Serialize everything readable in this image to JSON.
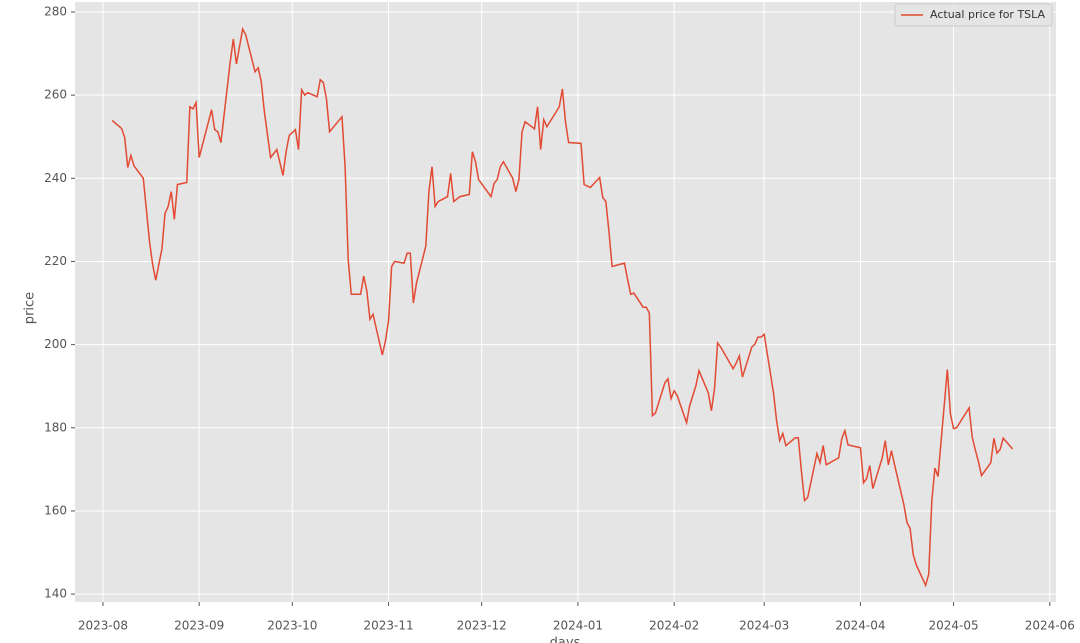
{
  "chart_data": {
    "type": "line",
    "x_label": "days",
    "y_label": "price",
    "legend": "upper right",
    "grid": true,
    "xlim": [
      "2023-07-23",
      "2024-06-03"
    ],
    "xticks": [
      {
        "value": "2023-08-01",
        "label": "2023-08"
      },
      {
        "value": "2023-09-01",
        "label": "2023-09"
      },
      {
        "value": "2023-10-01",
        "label": "2023-10"
      },
      {
        "value": "2023-11-01",
        "label": "2023-11"
      },
      {
        "value": "2023-12-01",
        "label": "2023-12"
      },
      {
        "value": "2024-01-01",
        "label": "2024-01"
      },
      {
        "value": "2024-02-01",
        "label": "2024-02"
      },
      {
        "value": "2024-03-01",
        "label": "2024-03"
      },
      {
        "value": "2024-04-01",
        "label": "2024-04"
      },
      {
        "value": "2024-05-01",
        "label": "2024-05"
      },
      {
        "value": "2024-06-01",
        "label": "2024-06"
      }
    ],
    "ylim": [
      138.1,
      282.4
    ],
    "yticks": [
      140,
      160,
      180,
      200,
      220,
      240,
      260,
      280
    ],
    "x": [
      "2023-08-04",
      "2023-08-07",
      "2023-08-08",
      "2023-08-09",
      "2023-08-10",
      "2023-08-11",
      "2023-08-14",
      "2023-08-16",
      "2023-08-17",
      "2023-08-18",
      "2023-08-20",
      "2023-08-21",
      "2023-08-22",
      "2023-08-23",
      "2023-08-24",
      "2023-08-25",
      "2023-08-28",
      "2023-08-29",
      "2023-08-30",
      "2023-08-31",
      "2023-09-01",
      "2023-09-05",
      "2023-09-06",
      "2023-09-07",
      "2023-09-08",
      "2023-09-11",
      "2023-09-12",
      "2023-09-13",
      "2023-09-15",
      "2023-09-16",
      "2023-09-19",
      "2023-09-20",
      "2023-09-21",
      "2023-09-22",
      "2023-09-24",
      "2023-09-26",
      "2023-09-28",
      "2023-09-29",
      "2023-09-30",
      "2023-10-02",
      "2023-10-03",
      "2023-10-04",
      "2023-10-05",
      "2023-10-06",
      "2023-10-09",
      "2023-10-10",
      "2023-10-11",
      "2023-10-12",
      "2023-10-13",
      "2023-10-17",
      "2023-10-18",
      "2023-10-19",
      "2023-10-20",
      "2023-10-23",
      "2023-10-24",
      "2023-10-25",
      "2023-10-26",
      "2023-10-27",
      "2023-10-30",
      "2023-10-31",
      "2023-11-01",
      "2023-11-02",
      "2023-11-03",
      "2023-11-06",
      "2023-11-07",
      "2023-11-08",
      "2023-11-09",
      "2023-11-10",
      "2023-11-13",
      "2023-11-14",
      "2023-11-15",
      "2023-11-16",
      "2023-11-17",
      "2023-11-20",
      "2023-11-21",
      "2023-11-22",
      "2023-11-24",
      "2023-11-27",
      "2023-11-28",
      "2023-11-29",
      "2023-11-30",
      "2023-12-04",
      "2023-12-05",
      "2023-12-06",
      "2023-12-07",
      "2023-12-08",
      "2023-12-11",
      "2023-12-12",
      "2023-12-13",
      "2023-12-14",
      "2023-12-15",
      "2023-12-18",
      "2023-12-19",
      "2023-12-20",
      "2023-12-21",
      "2023-12-22",
      "2023-12-26",
      "2023-12-27",
      "2023-12-28",
      "2023-12-29",
      "2024-01-02",
      "2024-01-03",
      "2024-01-05",
      "2024-01-08",
      "2024-01-09",
      "2024-01-10",
      "2024-01-11",
      "2024-01-12",
      "2024-01-16",
      "2024-01-17",
      "2024-01-18",
      "2024-01-19",
      "2024-01-22",
      "2024-01-23",
      "2024-01-24",
      "2024-01-25",
      "2024-01-26",
      "2024-01-29",
      "2024-01-30",
      "2024-01-31",
      "2024-02-01",
      "2024-02-02",
      "2024-02-05",
      "2024-02-06",
      "2024-02-07",
      "2024-02-08",
      "2024-02-09",
      "2024-02-12",
      "2024-02-13",
      "2024-02-14",
      "2024-02-15",
      "2024-02-16",
      "2024-02-20",
      "2024-02-21",
      "2024-02-22",
      "2024-02-23",
      "2024-02-26",
      "2024-02-27",
      "2024-02-28",
      "2024-02-29",
      "2024-03-01",
      "2024-03-04",
      "2024-03-05",
      "2024-03-06",
      "2024-03-07",
      "2024-03-08",
      "2024-03-11",
      "2024-03-12",
      "2024-03-13",
      "2024-03-14",
      "2024-03-15",
      "2024-03-18",
      "2024-03-19",
      "2024-03-20",
      "2024-03-21",
      "2024-03-25",
      "2024-03-26",
      "2024-03-27",
      "2024-03-28",
      "2024-04-01",
      "2024-04-02",
      "2024-04-03",
      "2024-04-04",
      "2024-04-05",
      "2024-04-08",
      "2024-04-09",
      "2024-04-10",
      "2024-04-11",
      "2024-04-12",
      "2024-04-15",
      "2024-04-16",
      "2024-04-17",
      "2024-04-18",
      "2024-04-19",
      "2024-04-22",
      "2024-04-23",
      "2024-04-24",
      "2024-04-25",
      "2024-04-26",
      "2024-04-29",
      "2024-04-30",
      "2024-05-01",
      "2024-05-02",
      "2024-05-03",
      "2024-05-06",
      "2024-05-07",
      "2024-05-08",
      "2024-05-09",
      "2024-05-10",
      "2024-05-13",
      "2024-05-14",
      "2024-05-15",
      "2024-05-16",
      "2024-05-17",
      "2024-05-20"
    ],
    "series": [
      {
        "name": "Actual price for TSLA",
        "color": "#e24a33",
        "values": [
          253.9,
          252,
          249.8,
          242.6,
          245.5,
          243,
          240,
          224.8,
          219.3,
          215.5,
          223,
          231.6,
          233.2,
          236.8,
          230.1,
          238.5,
          239,
          257.2,
          256.7,
          258.2,
          245,
          256.5,
          251.7,
          251.2,
          248.6,
          268,
          273.5,
          267.5,
          275.9,
          274.5,
          265.6,
          266.6,
          263.2,
          256,
          245,
          246.9,
          240.7,
          246.4,
          250.3,
          251.7,
          246.9,
          261.3,
          260,
          260.6,
          259.6,
          263.7,
          263,
          259.1,
          251.2,
          254.8,
          242.8,
          220.5,
          212.1,
          212.1,
          216.5,
          212.9,
          206.1,
          207.3,
          197.5,
          200.9,
          205.7,
          218.8,
          220,
          219.6,
          222,
          222,
          210,
          214.8,
          223.7,
          236.8,
          242.8,
          233.2,
          234.4,
          235.6,
          241.2,
          234.4,
          235.6,
          236.1,
          246.4,
          244,
          239.7,
          235.6,
          238.8,
          239.7,
          242.8,
          244,
          240,
          236.8,
          239.7,
          251.2,
          253.6,
          251.9,
          257.2,
          246.9,
          254.1,
          252.4,
          257.2,
          261.5,
          253.6,
          248.6,
          248.4,
          238.5,
          237.8,
          240.2,
          235.4,
          234.4,
          227.2,
          218.8,
          219.6,
          215.7,
          212.1,
          212.4,
          209,
          209,
          207.6,
          182.9,
          183.6,
          190.8,
          191.8,
          187,
          188.9,
          187.7,
          181.2,
          185.3,
          187.7,
          190.1,
          193.7,
          188.4,
          184.1,
          189.4,
          200.4,
          199.4,
          194.2,
          195.6,
          197.3,
          192.2,
          199.4,
          200.1,
          201.8,
          201.8,
          202.5,
          188.4,
          181.7,
          176.9,
          178.6,
          175.7,
          177.6,
          177.6,
          169.5,
          162.5,
          163.2,
          173.8,
          171.6,
          175.7,
          171.1,
          172.8,
          177.4,
          179.3,
          175.9,
          175.2,
          166.8,
          167.8,
          170.9,
          165.4,
          172.7,
          176.9,
          171.1,
          174.5,
          171.1,
          161.5,
          157.2,
          155.8,
          149.5,
          147,
          142.1,
          144.8,
          162.5,
          170.3,
          168.3,
          194,
          183.3,
          179.8,
          180,
          181.2,
          184.8,
          177.8,
          174.7,
          171.9,
          168.5,
          171.6,
          177.5,
          173.9,
          174.8,
          177.5,
          174.9
        ]
      }
    ]
  }
}
